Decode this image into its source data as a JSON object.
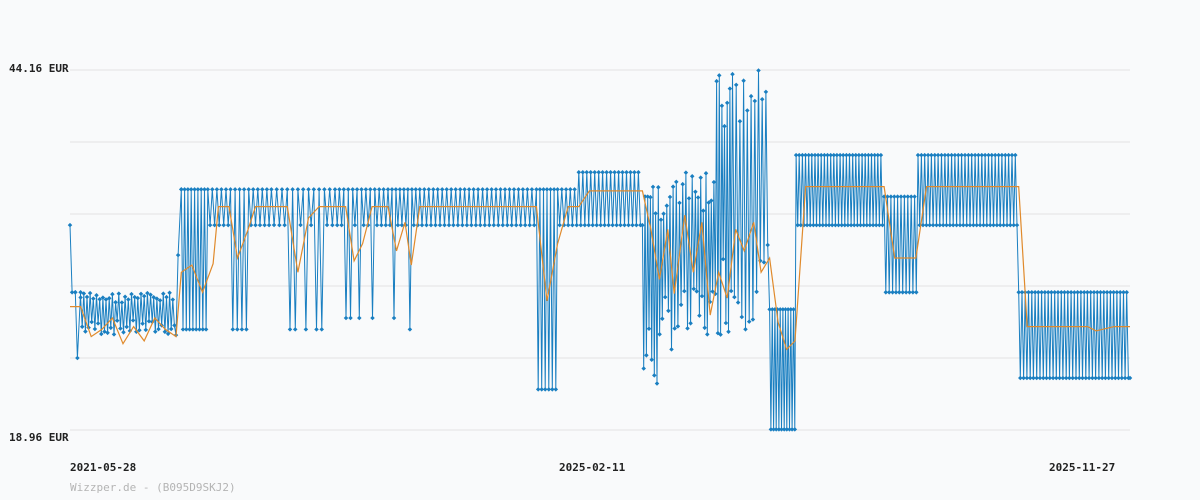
{
  "footer_text": "Wizzper.de - (B095D9SKJ2)",
  "chart_data": {
    "type": "line",
    "title": "",
    "xlabel": "",
    "ylabel": "",
    "unit": "EUR",
    "y_tick_labels": [
      "44.16 EUR",
      "18.96 EUR"
    ],
    "x_tick_labels": [
      "2021-05-28",
      "2025-02-11",
      "2025-11-27"
    ],
    "ylim": [
      18.96,
      44.16
    ],
    "grid": true,
    "colors": {
      "price": "#1a7fc1",
      "average": "#e08a2c",
      "grid": "#e3e3e3"
    },
    "series": [
      {
        "key": "price",
        "oscillating_segments": [
          {
            "x0": 0.0,
            "x1": 0.005,
            "pts": [
              [
                0.0,
                33.3
              ],
              [
                0.002,
                28.6
              ],
              [
                0.005,
                28.6
              ]
            ]
          },
          {
            "x0": 0.005,
            "x1": 0.01,
            "pts": [
              [
                0.005,
                28.6
              ],
              [
                0.007,
                24.0
              ],
              [
                0.01,
                28.6
              ]
            ]
          },
          {
            "x0": 0.01,
            "x1": 0.1,
            "hi": 28.6,
            "lo": 25.6,
            "n": 30,
            "mode": "noisy"
          },
          {
            "x0": 0.1,
            "x1": 0.105,
            "pts": [
              [
                0.1,
                25.6
              ],
              [
                0.102,
                31.2
              ],
              [
                0.105,
                35.8
              ]
            ]
          },
          {
            "x0": 0.105,
            "x1": 0.13,
            "hi": 35.8,
            "lo": 26.0,
            "n": 8
          },
          {
            "x0": 0.13,
            "x1": 0.19,
            "hi": 35.8,
            "lo": 33.3,
            "n": 14,
            "dips": [
              [
                0.155,
                26.0
              ],
              [
                0.165,
                26.0
              ],
              [
                0.175,
                33.3
              ]
            ]
          },
          {
            "x0": 0.19,
            "x1": 0.25,
            "hi": 35.8,
            "lo": 33.3,
            "n": 12,
            "dips": [
              [
                0.21,
                26.0
              ],
              [
                0.222,
                26.0
              ],
              [
                0.235,
                26.0
              ]
            ]
          },
          {
            "x0": 0.25,
            "x1": 0.3,
            "hi": 35.8,
            "lo": 33.3,
            "n": 12,
            "dips": [
              [
                0.262,
                26.8
              ],
              [
                0.272,
                26.8
              ],
              [
                0.285,
                26.8
              ]
            ]
          },
          {
            "x0": 0.3,
            "x1": 0.33,
            "hi": 35.8,
            "lo": 33.3,
            "n": 8,
            "dips": [
              [
                0.305,
                26.8
              ],
              [
                0.32,
                26.0
              ]
            ]
          },
          {
            "x0": 0.33,
            "x1": 0.44,
            "hi": 35.8,
            "lo": 33.3,
            "n": 26
          },
          {
            "x0": 0.44,
            "x1": 0.46,
            "hi": 35.8,
            "lo": 21.8,
            "n": 6
          },
          {
            "x0": 0.46,
            "x1": 0.48,
            "hi": 35.8,
            "lo": 33.3,
            "n": 5
          },
          {
            "x0": 0.48,
            "x1": 0.54,
            "hi": 37.0,
            "lo": 33.3,
            "n": 16
          },
          {
            "x0": 0.54,
            "x1": 0.56,
            "hi": 37.0,
            "lo": 21.5,
            "n": 8,
            "mode": "noisy"
          },
          {
            "x0": 0.56,
            "x1": 0.59,
            "hi": 37.0,
            "lo": 24.5,
            "n": 10,
            "mode": "noisy"
          },
          {
            "x0": 0.59,
            "x1": 0.61,
            "hi": 37.0,
            "lo": 25.0,
            "n": 8,
            "mode": "noisy"
          },
          {
            "x0": 0.61,
            "x1": 0.625,
            "hi": 44.16,
            "lo": 25.5,
            "n": 6,
            "mode": "noisy"
          },
          {
            "x0": 0.625,
            "x1": 0.66,
            "hi": 44.16,
            "lo": 26.0,
            "n": 10,
            "mode": "noisy"
          },
          {
            "x0": 0.66,
            "x1": 0.685,
            "hi": 27.4,
            "lo": 19.0,
            "n": 10
          },
          {
            "x0": 0.685,
            "x1": 0.768,
            "hi": 38.2,
            "lo": 33.3,
            "n": 28
          },
          {
            "x0": 0.768,
            "x1": 0.8,
            "hi": 35.3,
            "lo": 28.6,
            "n": 10
          },
          {
            "x0": 0.8,
            "x1": 0.895,
            "hi": 38.2,
            "lo": 33.3,
            "n": 30
          },
          {
            "x0": 0.895,
            "x1": 1.0,
            "hi": 28.6,
            "lo": 22.6,
            "n": 34
          }
        ]
      },
      {
        "key": "average",
        "points": [
          [
            0.0,
            27.6
          ],
          [
            0.01,
            27.6
          ],
          [
            0.02,
            25.5
          ],
          [
            0.03,
            26.0
          ],
          [
            0.04,
            26.8
          ],
          [
            0.05,
            25.0
          ],
          [
            0.06,
            26.2
          ],
          [
            0.07,
            25.2
          ],
          [
            0.08,
            26.8
          ],
          [
            0.09,
            26.0
          ],
          [
            0.1,
            25.5
          ],
          [
            0.105,
            30.0
          ],
          [
            0.115,
            30.5
          ],
          [
            0.125,
            28.6
          ],
          [
            0.135,
            30.6
          ],
          [
            0.14,
            34.6
          ],
          [
            0.15,
            34.6
          ],
          [
            0.158,
            31.0
          ],
          [
            0.168,
            33.0
          ],
          [
            0.175,
            34.6
          ],
          [
            0.205,
            34.6
          ],
          [
            0.215,
            30.0
          ],
          [
            0.225,
            33.8
          ],
          [
            0.235,
            34.6
          ],
          [
            0.26,
            34.6
          ],
          [
            0.268,
            30.8
          ],
          [
            0.276,
            32.0
          ],
          [
            0.285,
            34.6
          ],
          [
            0.3,
            34.6
          ],
          [
            0.308,
            31.5
          ],
          [
            0.316,
            33.5
          ],
          [
            0.322,
            30.5
          ],
          [
            0.33,
            34.6
          ],
          [
            0.44,
            34.6
          ],
          [
            0.45,
            28.0
          ],
          [
            0.46,
            32.0
          ],
          [
            0.47,
            34.6
          ],
          [
            0.48,
            34.6
          ],
          [
            0.49,
            35.7
          ],
          [
            0.54,
            35.7
          ],
          [
            0.548,
            33.0
          ],
          [
            0.556,
            29.5
          ],
          [
            0.564,
            33.0
          ],
          [
            0.57,
            28.5
          ],
          [
            0.58,
            34.0
          ],
          [
            0.588,
            30.0
          ],
          [
            0.596,
            33.5
          ],
          [
            0.604,
            27.0
          ],
          [
            0.612,
            30.0
          ],
          [
            0.62,
            28.2
          ],
          [
            0.628,
            33.0
          ],
          [
            0.636,
            31.5
          ],
          [
            0.645,
            33.5
          ],
          [
            0.652,
            30.0
          ],
          [
            0.66,
            31.0
          ],
          [
            0.668,
            26.5
          ],
          [
            0.676,
            24.6
          ],
          [
            0.684,
            25.2
          ],
          [
            0.694,
            36.0
          ],
          [
            0.768,
            36.0
          ],
          [
            0.778,
            31.0
          ],
          [
            0.788,
            31.0
          ],
          [
            0.798,
            31.0
          ],
          [
            0.808,
            36.0
          ],
          [
            0.895,
            36.0
          ],
          [
            0.903,
            26.2
          ],
          [
            0.96,
            26.2
          ],
          [
            0.968,
            25.9
          ],
          [
            0.985,
            26.2
          ],
          [
            1.0,
            26.2
          ]
        ]
      }
    ]
  }
}
